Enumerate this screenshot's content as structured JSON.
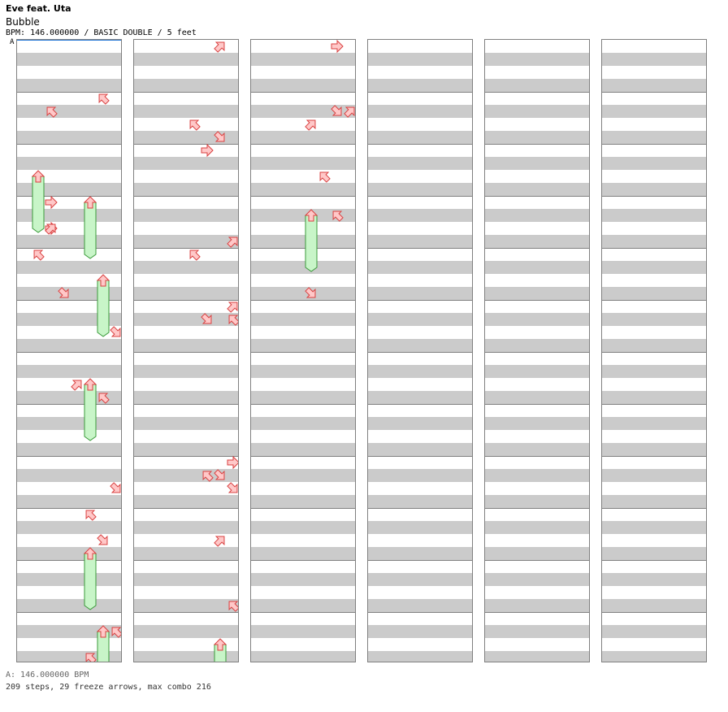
{
  "song": {
    "artist": "Eve feat. Uta",
    "title": "Bubble",
    "info": "BPM: 146.000000 / BASIC DOUBLE / 5 feet",
    "marker": "A"
  },
  "footer": {
    "bpm_line": "A: 146.000000 BPM",
    "summary": "209 steps, 29 freeze arrows, max combo 216"
  },
  "colors": {
    "arrow_fill": "#ffc8c8",
    "arrow_stroke": "#d94040",
    "freeze_fill": "#c8f5c8",
    "freeze_stroke": "#3a9a3a",
    "stripe": "#cbcbcb",
    "measure_line": "#808080"
  },
  "columns_count": 6,
  "measures_per_column": 12,
  "notes": [
    [
      2,
      5,
      "UL"
    ],
    [
      2,
      10,
      "R"
    ],
    [
      1,
      9,
      "UR"
    ],
    [
      2,
      8,
      "R"
    ],
    [
      1,
      2,
      "F",
      4
    ],
    [
      5,
      2,
      "F",
      4
    ],
    [
      1,
      4,
      "UL"
    ],
    [
      2,
      0,
      "UR"
    ],
    [
      3,
      3,
      "DR"
    ],
    [
      6,
      0,
      "F",
      4
    ],
    [
      7,
      2,
      "DR"
    ],
    [
      6,
      5,
      "UL"
    ],
    [
      5,
      2,
      "F",
      4
    ],
    [
      4,
      0,
      "UR"
    ],
    [
      8,
      1,
      "UR"
    ],
    [
      7,
      4,
      "DR"
    ],
    [
      8,
      4,
      "DR"
    ],
    [
      6,
      4,
      "DR"
    ],
    [
      5,
      0,
      "UL"
    ],
    [
      5,
      1,
      "F",
      4
    ],
    [
      6,
      5,
      "F",
      4
    ],
    [
      7,
      3,
      "UL"
    ],
    [
      5,
      3,
      "UL"
    ],
    [
      6,
      6,
      "UL"
    ],
    [
      5,
      8,
      "R"
    ],
    [
      6,
      4,
      "DR"
    ],
    [
      4,
      0,
      "UL"
    ],
    [
      7,
      6,
      "UR"
    ],
    [
      7,
      8,
      "UR"
    ],
    [
      4,
      1,
      "UL"
    ],
    [
      5,
      3,
      "DR"
    ],
    [
      7,
      0,
      "UL"
    ],
    [
      7,
      8,
      "R"
    ],
    [
      6,
      6,
      "DR"
    ],
    [
      7,
      4,
      "DR"
    ],
    [
      5,
      0,
      "UL"
    ],
    [
      6,
      2,
      "UR"
    ],
    [
      7,
      4,
      "UL"
    ],
    [
      6,
      4,
      "F",
      4
    ],
    [
      6,
      3,
      "UR"
    ],
    [
      6,
      0,
      "R"
    ],
    [
      7,
      3,
      "UR"
    ],
    [
      6,
      1,
      "DR"
    ],
    [
      4,
      0,
      "UR"
    ],
    [
      5,
      2,
      "UL"
    ],
    [
      4,
      3,
      "F",
      4
    ],
    [
      6,
      1,
      "UL"
    ],
    [
      4,
      5,
      "DR"
    ]
  ]
}
